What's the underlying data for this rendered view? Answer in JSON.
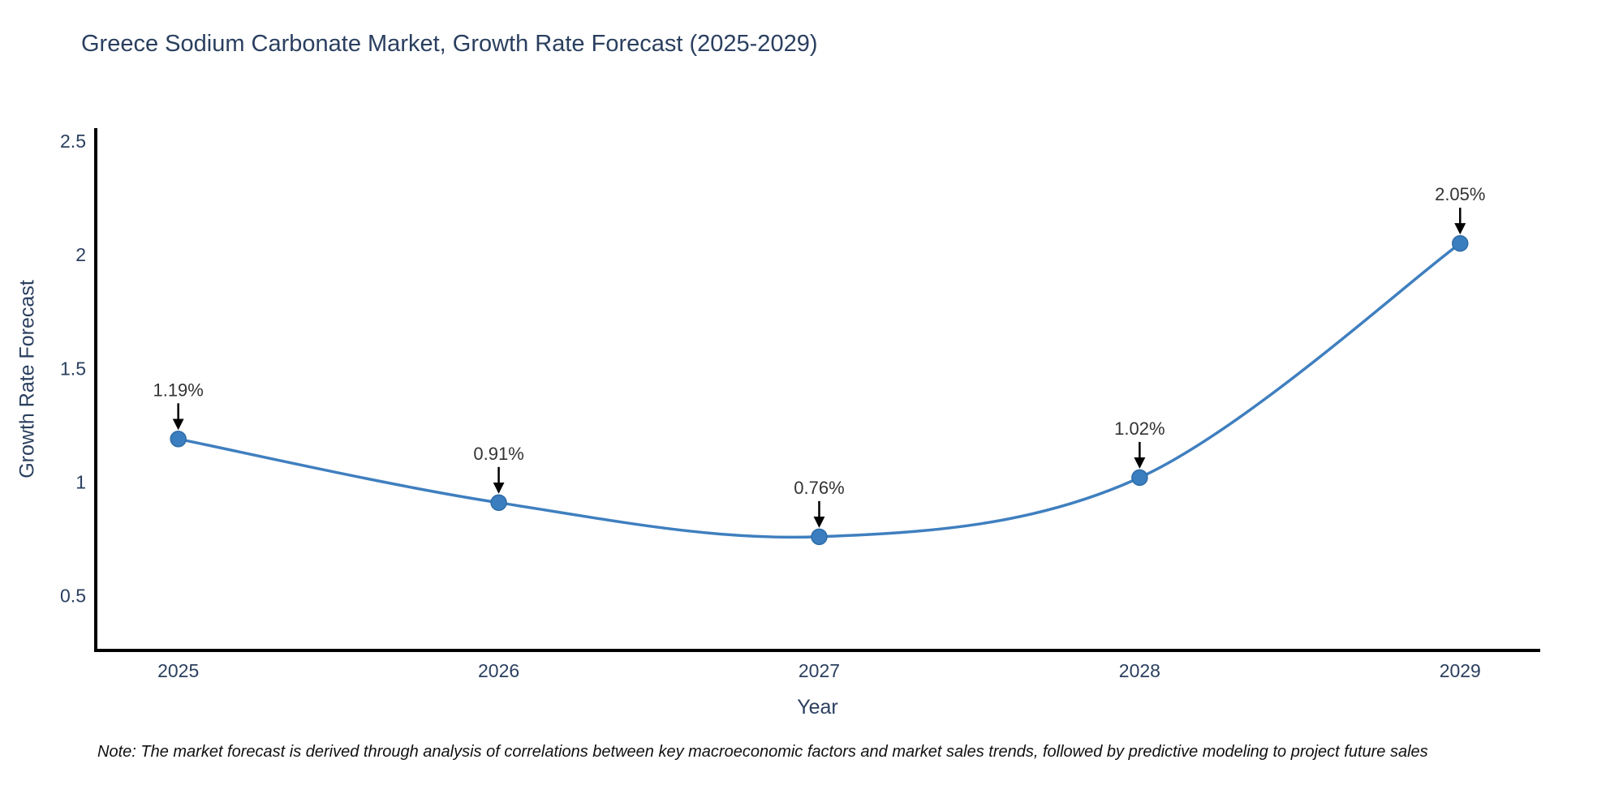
{
  "page": {
    "note": "Note: The market forecast is derived through analysis of correlations between key macroeconomic factors and market sales trends, followed by predictive modeling to project future sales"
  },
  "chart_data": {
    "type": "line",
    "title": "Greece Sodium Carbonate Market, Growth Rate Forecast (2025-2029)",
    "xlabel": "Year",
    "ylabel": "Growth Rate Forecast",
    "categories": [
      "2025",
      "2026",
      "2027",
      "2028",
      "2029"
    ],
    "x": [
      2025,
      2026,
      2027,
      2028,
      2029
    ],
    "values": [
      1.19,
      0.91,
      0.76,
      1.02,
      2.05
    ],
    "point_labels": [
      "1.19%",
      "0.91%",
      "0.76%",
      "1.02%",
      "2.05%"
    ],
    "y_tick_labels": [
      "0.5",
      "1",
      "1.5",
      "2",
      "2.5"
    ],
    "y_tick_values": [
      0.5,
      1.0,
      1.5,
      2.0,
      2.5
    ],
    "xlim": [
      2024.74,
      2029.25
    ],
    "ylim": [
      0.26,
      2.55
    ],
    "line_shape": "spline",
    "grid": false,
    "legend": false,
    "annotation_arrows": "down",
    "colors": {
      "line": "#3f7fbf",
      "marker_fill": "#3a7ebf",
      "marker_edge": "#2e6ca6",
      "axis_line": "#000000",
      "axis_text": "#2a3f5f",
      "annotation_text": "#333333",
      "arrow": "#000000"
    }
  }
}
